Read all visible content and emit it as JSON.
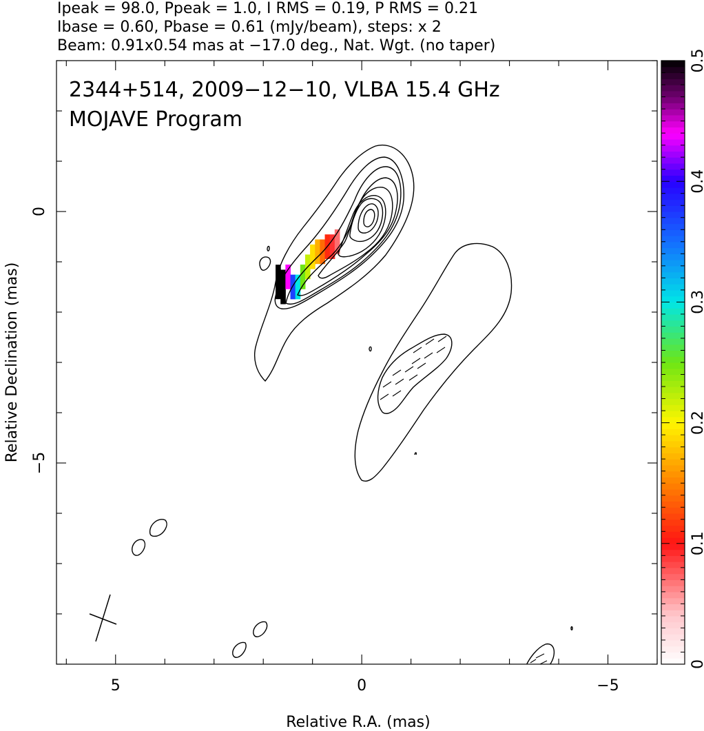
{
  "header": {
    "line1": "Ipeak = 98.0, Ppeak = 1.0, I RMS = 0.19, P RMS = 0.21",
    "line2": "Ibase = 0.60, Pbase = 0.61 (mJy/beam), steps: x 2",
    "line3": "Beam: 0.91x0.54 mas at −17.0 deg., Nat. Wgt. (no taper)"
  },
  "annotation": {
    "line1": "2344+514, 2009−12−10, VLBA 15.4 GHz",
    "line2": "MOJAVE Program"
  },
  "chart_data": {
    "type": "heatmap",
    "title": "",
    "xlabel": "Relative R.A. (mas)",
    "ylabel": "Relative Declination (mas)",
    "xlim": [
      6.2,
      -6.0
    ],
    "ylim": [
      -9.0,
      3.0
    ],
    "x_ticks": [
      {
        "value": 5,
        "label": "5"
      },
      {
        "value": 0,
        "label": "0"
      },
      {
        "value": -5,
        "label": "−5"
      }
    ],
    "y_ticks": [
      {
        "value": 0,
        "label": "0"
      },
      {
        "value": -5,
        "label": "−5"
      }
    ],
    "x_minor_step": 1,
    "y_minor_step": 1,
    "colorbar": {
      "range": [
        0,
        0.5
      ],
      "ticks": [
        {
          "value": 0,
          "label": "0"
        },
        {
          "value": 0.1,
          "label": "0.1"
        },
        {
          "value": 0.2,
          "label": "0.2"
        },
        {
          "value": 0.3,
          "label": "0.3"
        },
        {
          "value": 0.4,
          "label": "0.4"
        },
        {
          "value": 0.5,
          "label": "0.5"
        }
      ]
    },
    "core": {
      "ra": 0.0,
      "dec": 0.0
    },
    "beam": {
      "major": 0.91,
      "minor": 0.54,
      "pa_deg": -17.0,
      "center_ra": 5.3,
      "center_dec": -8.1
    },
    "fractional_polarization_pixels": [
      {
        "ra": 1.7,
        "dec": -1.4,
        "value": 0.5
      },
      {
        "ra": 1.6,
        "dec": -1.5,
        "value": 0.5
      },
      {
        "ra": 1.5,
        "dec": -1.3,
        "value": 0.44
      },
      {
        "ra": 1.4,
        "dec": -1.5,
        "value": 0.37
      },
      {
        "ra": 1.3,
        "dec": -1.5,
        "value": 0.3
      },
      {
        "ra": 1.2,
        "dec": -1.3,
        "value": 0.25
      },
      {
        "ra": 1.1,
        "dec": -1.1,
        "value": 0.22
      },
      {
        "ra": 1.0,
        "dec": -0.9,
        "value": 0.19
      },
      {
        "ra": 0.9,
        "dec": -0.8,
        "value": 0.17
      },
      {
        "ra": 0.8,
        "dec": -0.8,
        "value": 0.14
      },
      {
        "ra": 0.7,
        "dec": -0.7,
        "value": 0.11
      },
      {
        "ra": 0.6,
        "dec": -0.7,
        "value": 0.09
      },
      {
        "ra": 0.5,
        "dec": -0.6,
        "value": 0.07
      }
    ]
  },
  "colors": {
    "axis": "#000000",
    "contour": "#000000",
    "background": "#ffffff"
  }
}
